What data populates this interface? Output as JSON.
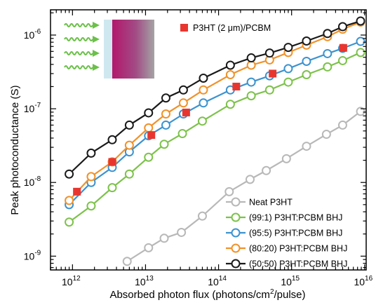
{
  "chart_data": {
    "type": "scatter",
    "title": "",
    "xlabel": {
      "prefix": "Absorbed photon flux (photons/cm",
      "sup": "2",
      "suffix": "/pulse)"
    },
    "ylabel": "Peak photoconductance (S)",
    "x_scale": "log",
    "y_scale": "log",
    "xlim": [
      500000000000.0,
      1.05e+16
    ],
    "ylim": [
      6.5e-10,
      2.2e-06
    ],
    "x_ticks": [
      {
        "value": 1000000000000.0,
        "base": "10",
        "exp": "12"
      },
      {
        "value": 10000000000000.0,
        "base": "10",
        "exp": "13"
      },
      {
        "value": 100000000000000.0,
        "base": "10",
        "exp": "14"
      },
      {
        "value": 1000000000000000.0,
        "base": "10",
        "exp": "15"
      },
      {
        "value": 1e+16,
        "base": "10",
        "exp": "16"
      }
    ],
    "y_ticks": [
      {
        "value": 1e-09,
        "base": "10",
        "exp": "-9"
      },
      {
        "value": 1e-08,
        "base": "10",
        "exp": "-8"
      },
      {
        "value": 1e-07,
        "base": "10",
        "exp": "-7"
      },
      {
        "value": 1e-06,
        "base": "10",
        "exp": "-6"
      }
    ],
    "grid": false,
    "legend_position": "bottom-right",
    "series": [
      {
        "name": "Neat P3HT",
        "color": "#b8b8b8",
        "marker": "circle-open",
        "x": [
          5600000000000.0,
          11000000000000.0,
          18000000000000.0,
          31000000000000.0,
          60000000000000.0,
          140000000000000.0,
          270000000000000.0,
          450000000000000.0,
          850000000000000.0,
          1600000000000000.0,
          3000000000000000.0,
          5000000000000000.0,
          8800000000000000.0
        ],
        "y": [
          8.5e-10,
          1.3e-09,
          1.75e-09,
          2.1e-09,
          3.5e-09,
          7.5e-09,
          1.1e-08,
          1.45e-08,
          2.1e-08,
          3.1e-08,
          4.5e-08,
          6e-08,
          9.2e-08
        ]
      },
      {
        "name": "(99:1) P3HT:PCBM BHJ",
        "color": "#7dc24b",
        "marker": "circle-open",
        "x": [
          900000000000.0,
          1800000000000.0,
          3500000000000.0,
          6000000000000.0,
          11000000000000.0,
          18000000000000.0,
          32000000000000.0,
          60000000000000.0,
          145000000000000.0,
          280000000000000.0,
          500000000000000.0,
          900000000000000.0,
          1600000000000000.0,
          3100000000000000.0,
          5000000000000000.0,
          8800000000000000.0
        ],
        "y": [
          2.9e-09,
          4.8e-09,
          8.5e-09,
          1.3e-08,
          2.2e-08,
          3.3e-08,
          4.6e-08,
          6.8e-08,
          1.15e-07,
          1.5e-07,
          1.8e-07,
          2.3e-07,
          2.9e-07,
          3.7e-07,
          4.5e-07,
          5.8e-07
        ]
      },
      {
        "name": "(95:5) P3HT:PCBM BHJ",
        "color": "#3d93cf",
        "marker": "circle-open",
        "x": [
          900000000000.0,
          1800000000000.0,
          3500000000000.0,
          6000000000000.0,
          11000000000000.0,
          19000000000000.0,
          33000000000000.0,
          62000000000000.0,
          145000000000000.0,
          280000000000000.0,
          500000000000000.0,
          900000000000000.0,
          1600000000000000.0,
          3100000000000000.0,
          5000000000000000.0,
          8800000000000000.0
        ],
        "y": [
          5e-09,
          1e-08,
          1.6e-08,
          2.6e-08,
          4.3e-08,
          6e-08,
          8.5e-08,
          1.2e-07,
          1.8e-07,
          2.3e-07,
          2.8e-07,
          3.5e-07,
          4.4e-07,
          5.6e-07,
          6.6e-07,
          8.2e-07
        ]
      },
      {
        "name": "(80:20) P3HT:PCBM BHJ",
        "color": "#f0922a",
        "marker": "circle-open",
        "x": [
          900000000000.0,
          1800000000000.0,
          3500000000000.0,
          6000000000000.0,
          11000000000000.0,
          19000000000000.0,
          33000000000000.0,
          62000000000000.0,
          145000000000000.0,
          280000000000000.0,
          500000000000000.0,
          900000000000000.0,
          1600000000000000.0,
          3100000000000000.0,
          5000000000000000.0,
          8800000000000000.0
        ],
        "y": [
          5.7e-09,
          1.2e-08,
          1.9e-08,
          3.2e-08,
          5.5e-08,
          8.5e-08,
          1.2e-07,
          1.8e-07,
          2.9e-07,
          3.9e-07,
          4.6e-07,
          5.8e-07,
          7.3e-07,
          9.5e-07,
          1.2e-06,
          1.5e-06
        ]
      },
      {
        "name": "(50:50) P3HT:PCBM BHJ",
        "color": "#1a1a1a",
        "marker": "circle-open",
        "x": [
          900000000000.0,
          1800000000000.0,
          3500000000000.0,
          6000000000000.0,
          11000000000000.0,
          19000000000000.0,
          33000000000000.0,
          62000000000000.0,
          145000000000000.0,
          280000000000000.0,
          500000000000000.0,
          900000000000000.0,
          1600000000000000.0,
          3100000000000000.0,
          5000000000000000.0,
          8800000000000000.0
        ],
        "y": [
          1.3e-08,
          2.5e-08,
          3.8e-08,
          6e-08,
          8.8e-08,
          1.4e-07,
          1.8e-07,
          2.6e-07,
          3.9e-07,
          4.9e-07,
          5.7e-07,
          6.8e-07,
          8.3e-07,
          1.05e-06,
          1.3e-06,
          1.55e-06
        ]
      },
      {
        "name": "P3HT (2 μm)/PCBM",
        "color": "#e8362f",
        "marker": "square-filled",
        "x": [
          1150000000000.0,
          3500000000000.0,
          12000000000000.0,
          36000000000000.0,
          175000000000000.0,
          550000000000000.0,
          5100000000000000.0
        ],
        "y": [
          7.5e-09,
          1.9e-08,
          4.4e-08,
          8.9e-08,
          2e-07,
          3e-07,
          6.7e-07
        ]
      }
    ]
  }
}
